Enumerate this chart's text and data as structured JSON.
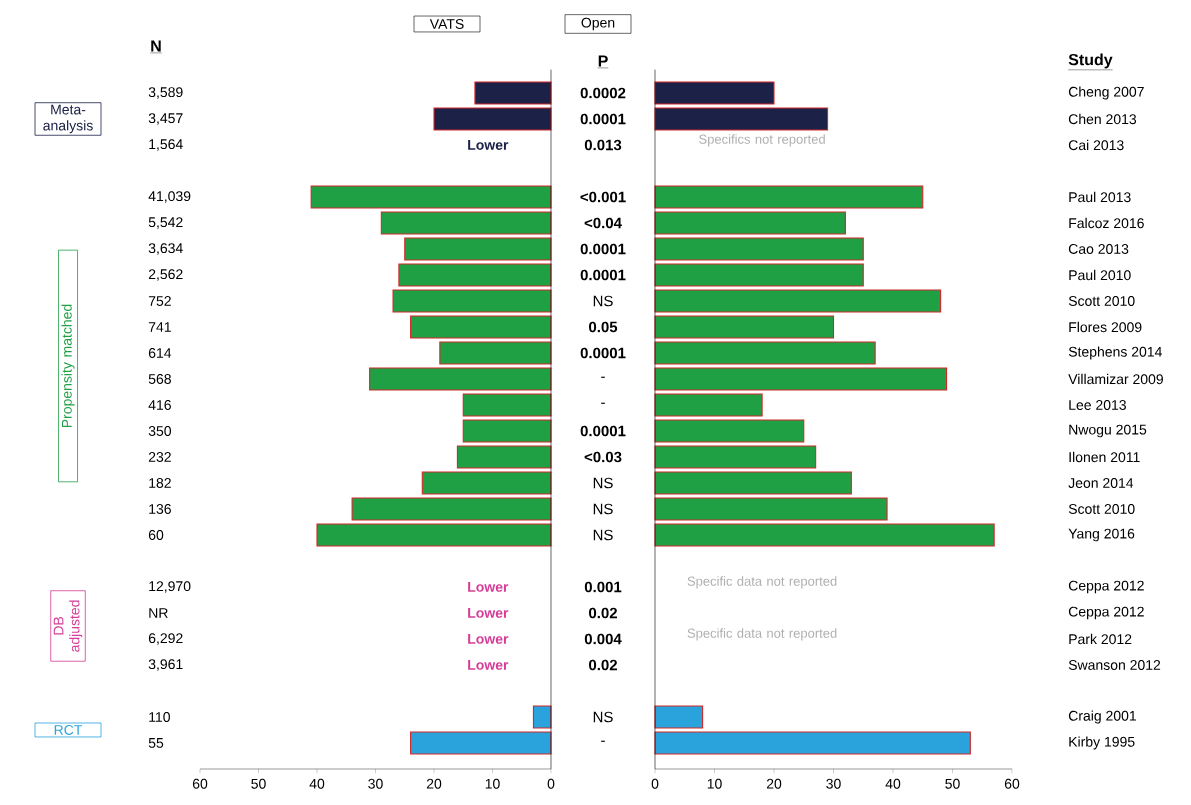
{
  "chart_data": [
    {
      "type": "bar",
      "orientation": "horizontal",
      "title": "VATS",
      "ylabel": "N",
      "categories": [
        "3,589",
        "3,457",
        "1,564",
        null,
        "41,039",
        "5,542",
        "3,634",
        "2,562",
        "752",
        "741",
        "614",
        "568",
        "416",
        "350",
        "232",
        "182",
        "136",
        "60",
        null,
        "12,970",
        "NR",
        "6,292",
        "3,961",
        null,
        "110",
        "55"
      ],
      "values": [
        13,
        20,
        null,
        null,
        41,
        29,
        25,
        26,
        27,
        24,
        19,
        31,
        15,
        15,
        16,
        22,
        34,
        40,
        null,
        null,
        null,
        null,
        null,
        null,
        3,
        24
      ],
      "colors": [
        "#1b2147",
        "#1b2147",
        "#1b2147",
        null,
        "#1fa045",
        "#1fa045",
        "#1fa045",
        "#1fa045",
        "#1fa045",
        "#1fa045",
        "#1fa045",
        "#1fa045",
        "#1fa045",
        "#1fa045",
        "#1fa045",
        "#1fa045",
        "#1fa045",
        "#1fa045",
        null,
        "#d63c97",
        "#d63c97",
        "#d63c97",
        "#d63c97",
        null,
        "#2aa3dc",
        "#2aa3dc"
      ],
      "xlim": [
        60,
        0
      ],
      "xticks": [
        0,
        10,
        20,
        30,
        40,
        50,
        60
      ],
      "value_labels": [
        null,
        null,
        "Lower",
        null,
        null,
        null,
        null,
        null,
        null,
        null,
        null,
        null,
        null,
        null,
        null,
        null,
        null,
        null,
        null,
        "Lower",
        "Lower",
        "Lower",
        "Lower",
        null,
        null,
        null
      ],
      "annotations": [
        "Meta-analysis",
        "Propensity matched",
        "DB adjusted",
        "RCT"
      ]
    },
    {
      "type": "other",
      "title": "P",
      "annotations": [
        "**0.0002**",
        "**0.0001**",
        "**0.013**",
        "**<0.001**",
        "**<0.04**",
        "**0.0001**",
        "**0.0001**",
        "NS",
        "**0.05**",
        "**0.0001**",
        "-",
        "-",
        "**0.0001**",
        "**<0.03**",
        "NS",
        "NS",
        "NS",
        "**0.001**",
        "**0.02**",
        "**0.004**",
        "**0.02**",
        "NS",
        "-"
      ]
    },
    {
      "type": "bar",
      "orientation": "horizontal",
      "title": "Open",
      "ylabel": "Study",
      "categories": [
        "Cheng 2007",
        "Chen 2013",
        "Cai 2013",
        null,
        "Paul 2013",
        "Falcoz 2016",
        "Cao 2013",
        "Paul 2010",
        "Scott 2010",
        "Flores 2009",
        "Stephens 2014",
        "Villamizar 2009",
        "Lee 2013",
        "Nwogu 2015",
        "Ilonen 2011",
        "Jeon 2014",
        "Scott 2010",
        "Yang 2016",
        null,
        "Ceppa 2012",
        "Ceppa 2012",
        "Park 2012",
        "Swanson 2012",
        null,
        "Craig 2001",
        "Kirby 1995"
      ],
      "values": [
        20,
        29,
        null,
        null,
        45,
        32,
        35,
        35,
        48,
        30,
        37,
        49,
        18,
        25,
        27,
        33,
        39,
        57,
        null,
        null,
        null,
        null,
        null,
        null,
        8,
        53
      ],
      "colors": [
        "#1b2147",
        "#1b2147",
        null,
        null,
        "#1fa045",
        "#1fa045",
        "#1fa045",
        "#1fa045",
        "#1fa045",
        "#1fa045",
        "#1fa045",
        "#1fa045",
        "#1fa045",
        "#1fa045",
        "#1fa045",
        "#1fa045",
        "#1fa045",
        "#1fa045",
        null,
        null,
        null,
        null,
        null,
        null,
        "#2aa3dc",
        "#2aa3dc"
      ],
      "xlim": [
        0,
        60
      ],
      "xticks": [
        0,
        10,
        20,
        30,
        40,
        50,
        60
      ],
      "value_labels": [
        null,
        null,
        "Specifics not reported",
        null,
        null,
        null,
        null,
        null,
        null,
        null,
        null,
        null,
        null,
        null,
        null,
        null,
        null,
        null,
        null,
        "Specific data not reported",
        null,
        "Specific data not reported",
        null,
        null,
        null,
        null
      ]
    }
  ]
}
